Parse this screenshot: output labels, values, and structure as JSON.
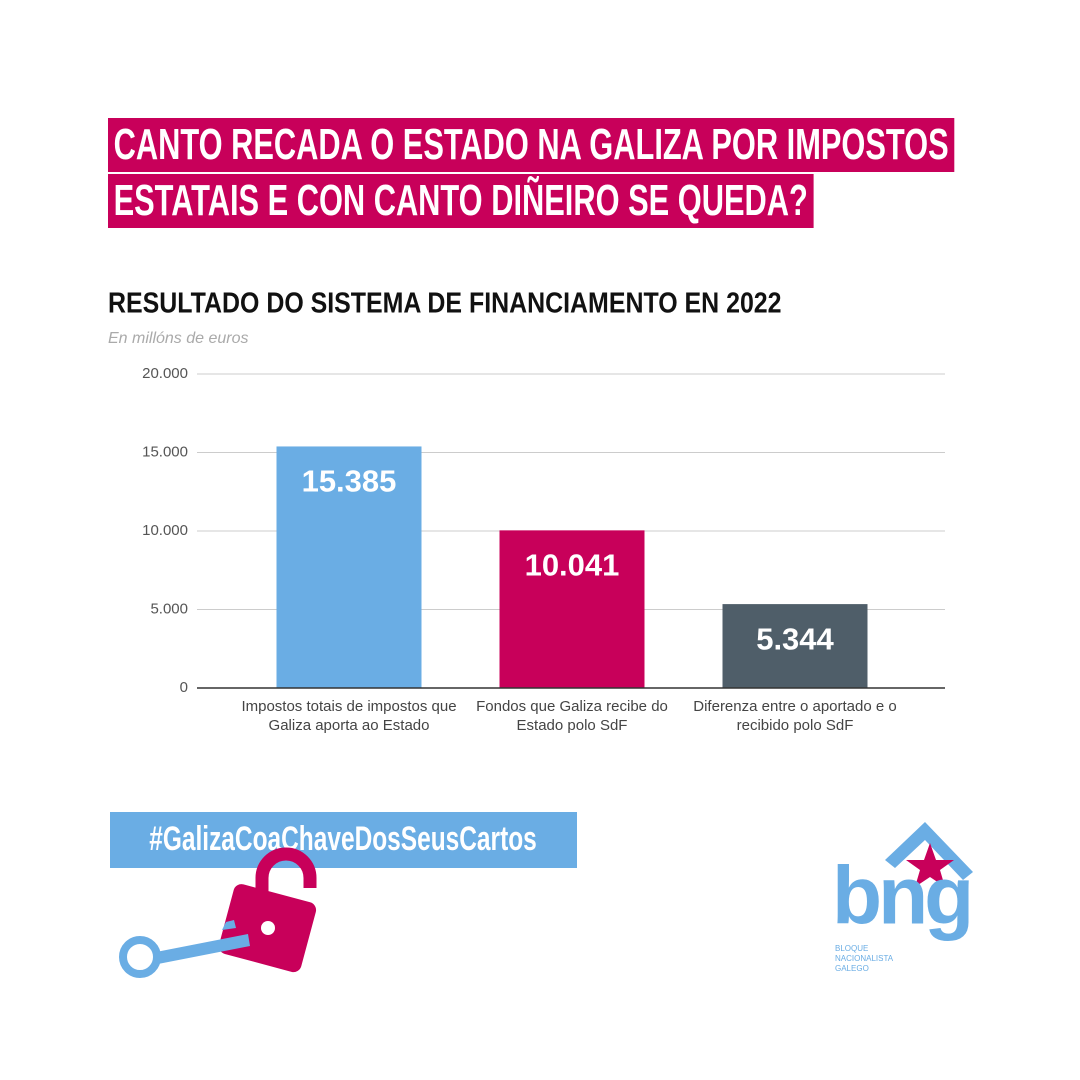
{
  "headline": [
    "CANTO RECADA O ESTADO NA GALIZA POR IMPOSTOS",
    "ESTATAIS E CON CANTO DIÑEIRO SE QUEDA?"
  ],
  "chart_data": {
    "type": "bar",
    "title": "RESULTADO DO SISTEMA DE FINANCIAMENTO EN 2022",
    "subtitle": "En millóns de euros",
    "categories": [
      "Impostos totais de impostos que Galiza aporta ao Estado",
      "Fondos que Galiza recibe do Estado polo SdF",
      "Diferenza entre o aportado e o recibido polo SdF"
    ],
    "values": [
      15385,
      10041,
      5344
    ],
    "value_labels": [
      "15.385",
      "10.041",
      "5.344"
    ],
    "colors": [
      "#6aade4",
      "#c8005a",
      "#4f5e69"
    ],
    "ylim": [
      0,
      20000
    ],
    "yticks": [
      0,
      {
        "value": 5000,
        "label": "5.000"
      },
      {
        "value": 10000,
        "label": "10.000"
      },
      {
        "value": 15000,
        "label": "15.000"
      },
      {
        "value": 20000,
        "label": "20.000"
      }
    ],
    "grid": true
  },
  "hashtag": "#GalizaCoaChaveDosSeusCartos",
  "logo": {
    "name": "bng",
    "subtitle": [
      "BLOQUE",
      "NACIONALISTA",
      "GALEGO"
    ]
  }
}
